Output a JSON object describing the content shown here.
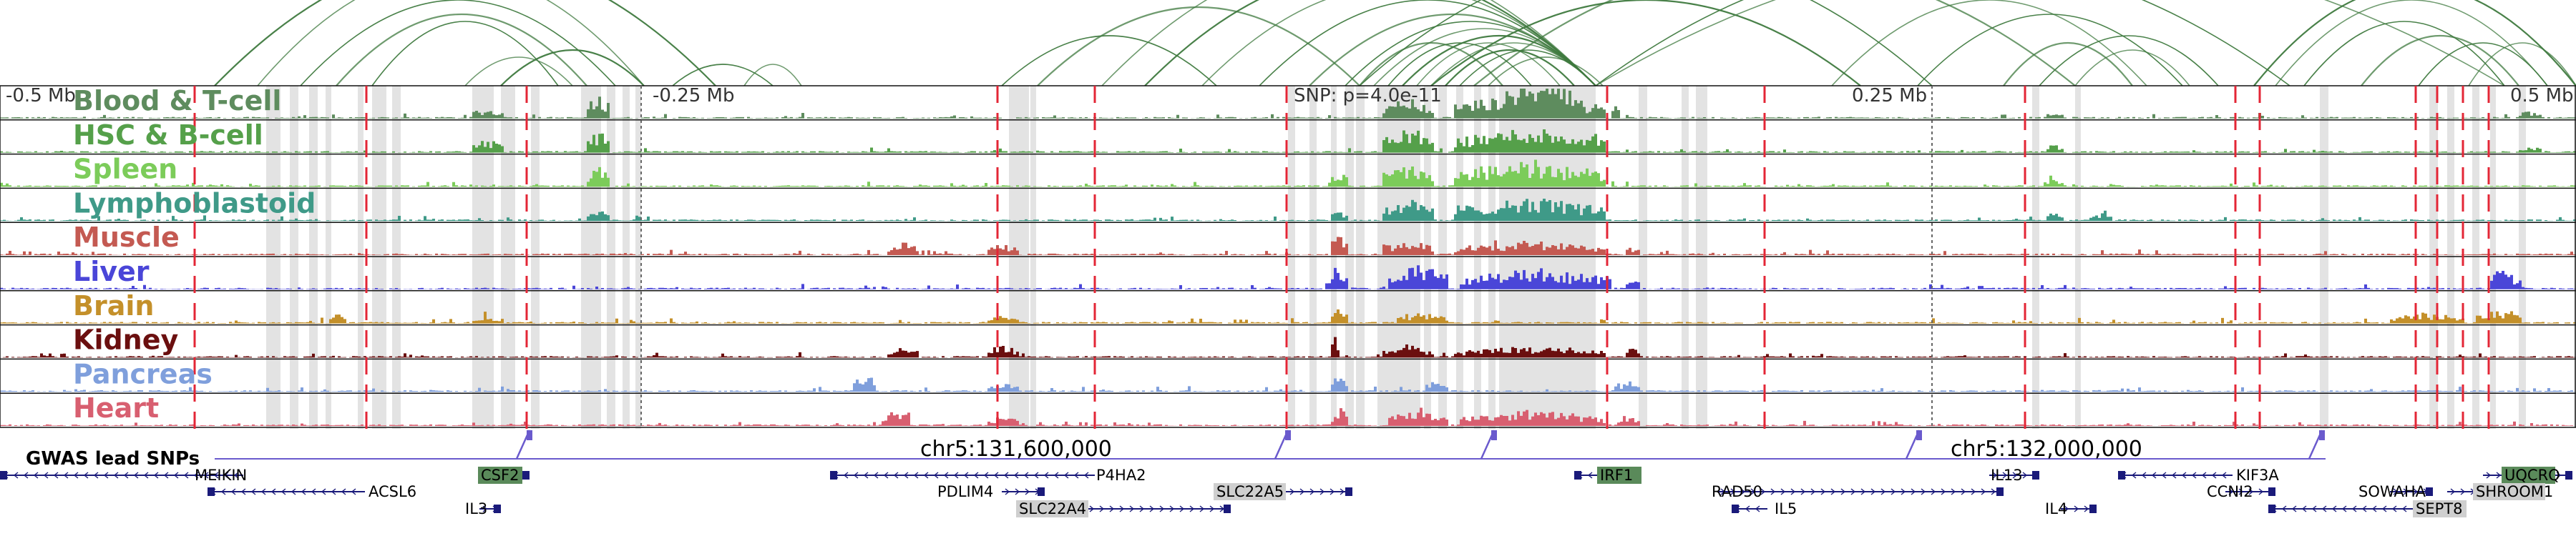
{
  "colors": {
    "interaction_arc": "#3f7a3f",
    "highlight": "#d9d9d9",
    "snp_line": "#e32636",
    "gwas": "#6a5acd",
    "gene": "#1a1a7a",
    "gene_highlight_green": "#5a8a5a",
    "gene_highlight_gray": "#cfcfcf"
  },
  "scale": {
    "left_label": "-0.5 Mb",
    "quarter_left_label": "-0.25 Mb",
    "snp_label": "SNP: p=4.0e-11",
    "quarter_right_label": "0.25 Mb",
    "right_label": "0.5 Mb"
  },
  "tracks": [
    {
      "name": "Blood & T-cell",
      "color": "#5e8c5e"
    },
    {
      "name": "HSC & B-cell",
      "color": "#55a04a"
    },
    {
      "name": "Spleen",
      "color": "#7ccc5a"
    },
    {
      "name": "Lymphoblastoid",
      "color": "#3f9a88"
    },
    {
      "name": "Muscle",
      "color": "#c45a52"
    },
    {
      "name": "Liver",
      "color": "#4a46d8"
    },
    {
      "name": "Brain",
      "color": "#c4902a"
    },
    {
      "name": "Kidney",
      "color": "#6b0f0f"
    },
    {
      "name": "Pancreas",
      "color": "#7f9fdc"
    },
    {
      "name": "Heart",
      "color": "#d85f70"
    }
  ],
  "gwas": {
    "label": "GWAS lead SNPs"
  },
  "coordinates": {
    "left": "chr5:131,600,000",
    "right": "chr5:132,000,000"
  },
  "genes": [
    {
      "name": "MEIKIN",
      "style": "plain"
    },
    {
      "name": "CSF2",
      "style": "green"
    },
    {
      "name": "P4HA2",
      "style": "plain"
    },
    {
      "name": "IRF1",
      "style": "green"
    },
    {
      "name": "IL13",
      "style": "plain"
    },
    {
      "name": "KIF3A",
      "style": "plain"
    },
    {
      "name": "UQCRQ",
      "style": "green"
    },
    {
      "name": "ACSL6",
      "style": "plain"
    },
    {
      "name": "PDLIM4",
      "style": "plain"
    },
    {
      "name": "SLC22A5",
      "style": "gray"
    },
    {
      "name": "RAD50",
      "style": "plain"
    },
    {
      "name": "CCNI2",
      "style": "plain"
    },
    {
      "name": "SOWAHA",
      "style": "plain"
    },
    {
      "name": "SHROOM1",
      "style": "gray"
    },
    {
      "name": "IL3",
      "style": "plain"
    },
    {
      "name": "SLC22A4",
      "style": "gray"
    },
    {
      "name": "IL5",
      "style": "plain"
    },
    {
      "name": "IL4",
      "style": "plain"
    },
    {
      "name": "SEPT8",
      "style": "gray"
    }
  ]
}
